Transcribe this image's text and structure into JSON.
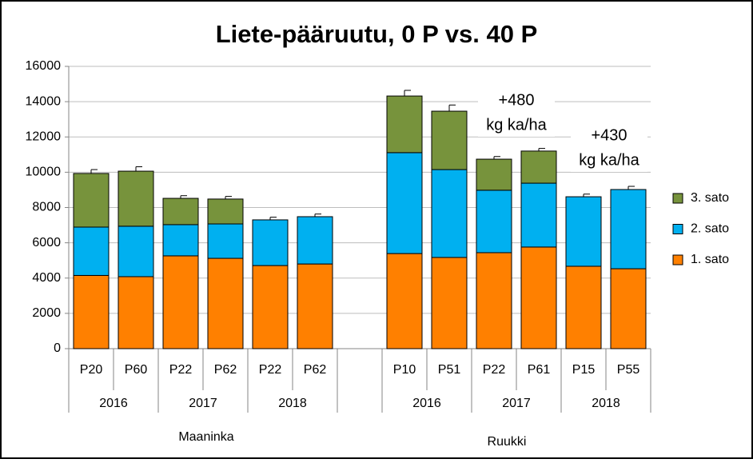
{
  "chart_data": {
    "type": "stacked-bar",
    "title": "Liete-pääruutu, 0 P vs. 40 P",
    "categories": [
      "P20",
      "P60",
      "P22",
      "P62",
      "P22",
      "P62",
      null,
      "P10",
      "P51",
      "P22",
      "P61",
      "P15",
      "P55"
    ],
    "years": [
      "2016",
      "2017",
      "2018",
      "2016",
      "2017",
      "2018"
    ],
    "sites": [
      "Maaninka",
      "Ruukki"
    ],
    "series": [
      {
        "name": "1. sato",
        "color": "#ff8000",
        "values": [
          4150,
          4080,
          5260,
          5120,
          4710,
          4800,
          null,
          5390,
          5170,
          5440,
          5760,
          4670,
          4530
        ]
      },
      {
        "name": "2. sato",
        "color": "#00b0f0",
        "values": [
          2740,
          2860,
          1770,
          1950,
          2590,
          2680,
          null,
          5720,
          4980,
          3540,
          3620,
          3940,
          4490
        ]
      },
      {
        "name": "3. sato",
        "color": "#77933c",
        "values": [
          3040,
          3120,
          1490,
          1410,
          null,
          null,
          null,
          3210,
          3310,
          1760,
          1820,
          null,
          null
        ]
      }
    ],
    "errors": [
      220,
      250,
      150,
      150,
      150,
      150,
      null,
      320,
      350,
      150,
      150,
      150,
      180
    ],
    "annotations": [
      [
        "+480",
        "kg ka/ha"
      ],
      [
        "+430",
        "kg ka/ha"
      ]
    ],
    "ylim": [
      0,
      16000
    ],
    "yticks": [
      0,
      2000,
      4000,
      6000,
      8000,
      10000,
      12000,
      14000,
      16000
    ],
    "grid": true,
    "legend": "right"
  }
}
